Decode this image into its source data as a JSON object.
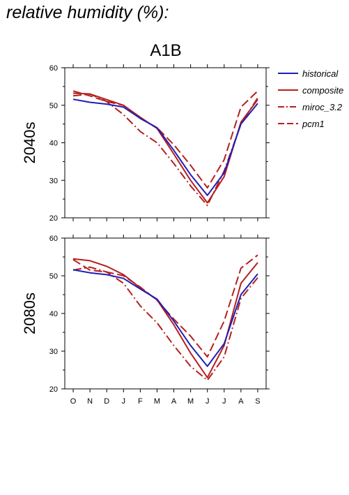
{
  "page": {
    "title": "relative humidity (%):"
  },
  "colors": {
    "historical": "#1f1fb4",
    "scenario": "#b41f1f"
  },
  "chart_data": {
    "type": "line",
    "title": "A1B",
    "x": [
      "O",
      "N",
      "D",
      "J",
      "F",
      "M",
      "A",
      "M",
      "J",
      "J",
      "A",
      "S"
    ],
    "ylim": [
      20,
      60
    ],
    "yticks": [
      20,
      30,
      40,
      50,
      60
    ],
    "legend": {
      "position": "top-right",
      "entries": [
        {
          "name": "historical",
          "style": "solid",
          "color": "#1f1fb4"
        },
        {
          "name": "composite",
          "style": "solid",
          "color": "#b41f1f"
        },
        {
          "name": "miroc_3.2",
          "style": "dashdot",
          "color": "#b41f1f"
        },
        {
          "name": "pcm1",
          "style": "dashed",
          "color": "#b41f1f"
        }
      ]
    },
    "panels": [
      {
        "label": "2040s",
        "series": [
          {
            "name": "historical",
            "values": [
              51.6,
              50.8,
              50.3,
              49.5,
              46.5,
              44.0,
              38.0,
              31.5,
              26.0,
              32.0,
              45.0,
              50.5
            ]
          },
          {
            "name": "composite",
            "values": [
              53.2,
              53.0,
              51.5,
              50.0,
              46.8,
              43.8,
              37.0,
              30.0,
              24.0,
              31.0,
              45.5,
              51.5
            ]
          },
          {
            "name": "miroc_3.2",
            "values": [
              52.5,
              53.0,
              51.0,
              47.5,
              43.0,
              40.0,
              34.5,
              28.5,
              23.3,
              32.5,
              45.0,
              52.0
            ]
          },
          {
            "name": "pcm1",
            "values": [
              53.8,
              52.5,
              51.0,
              50.0,
              46.5,
              44.0,
              39.5,
              34.0,
              28.0,
              35.5,
              49.5,
              53.8
            ]
          }
        ]
      },
      {
        "label": "2080s",
        "series": [
          {
            "name": "historical",
            "values": [
              51.6,
              50.8,
              50.3,
              49.3,
              46.5,
              43.8,
              38.0,
              31.5,
              26.0,
              32.0,
              45.0,
              50.5
            ]
          },
          {
            "name": "composite",
            "values": [
              54.5,
              54.0,
              52.5,
              50.3,
              46.8,
              43.6,
              37.0,
              29.5,
              23.0,
              31.5,
              48.0,
              53.5
            ]
          },
          {
            "name": "miroc_3.2",
            "values": [
              51.5,
              52.3,
              51.0,
              48.0,
              42.0,
              37.5,
              31.5,
              26.0,
              22.3,
              28.5,
              44.0,
              49.5
            ]
          },
          {
            "name": "pcm1",
            "values": [
              54.3,
              51.5,
              51.0,
              50.0,
              47.0,
              43.5,
              38.5,
              34.0,
              28.5,
              38.0,
              52.0,
              55.5
            ]
          }
        ]
      }
    ]
  }
}
